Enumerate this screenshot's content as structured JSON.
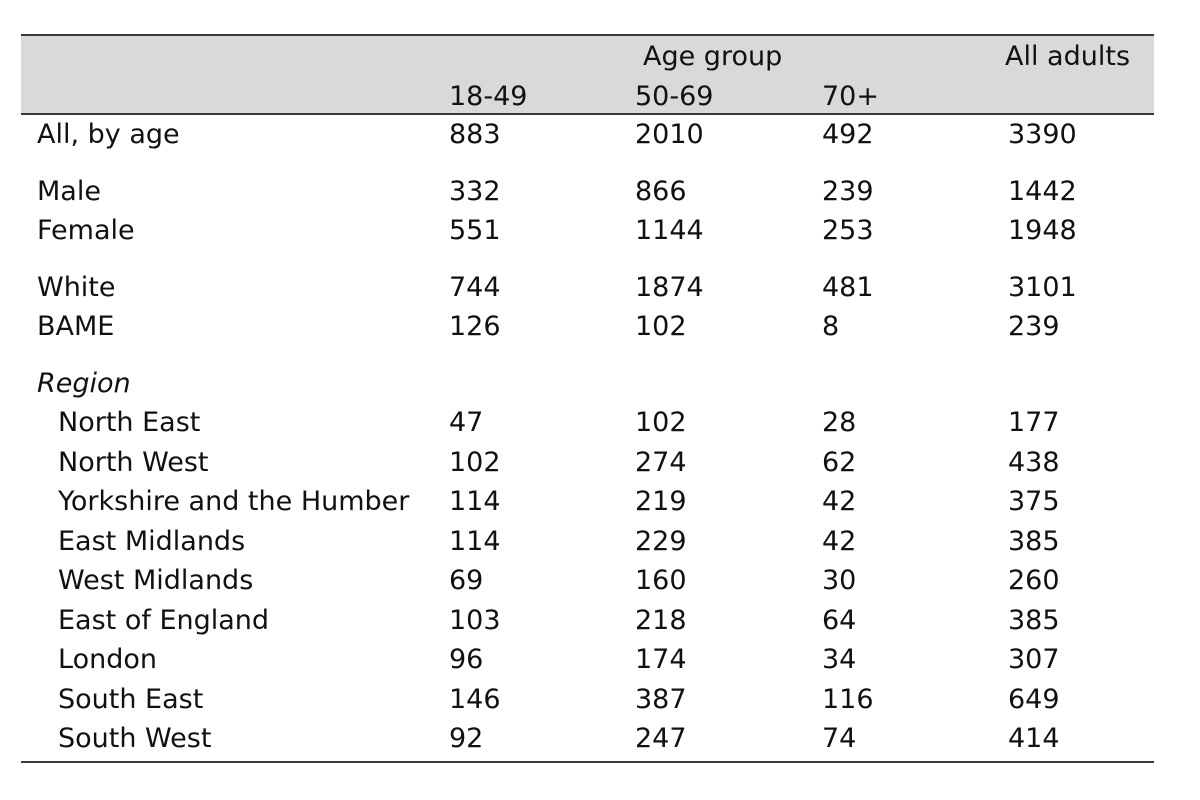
{
  "header": {
    "group_label": "Age group",
    "all_label": "All adults",
    "columns": [
      "18-49",
      "50-69",
      "70+"
    ]
  },
  "rows": [
    {
      "label": "All, by age",
      "values": [
        "883",
        "2010",
        "492",
        "3390"
      ]
    },
    {
      "label": "Male",
      "values": [
        "332",
        "866",
        "239",
        "1442"
      ]
    },
    {
      "label": "Female",
      "values": [
        "551",
        "1144",
        "253",
        "1948"
      ]
    },
    {
      "label": "White",
      "values": [
        "744",
        "1874",
        "481",
        "3101"
      ]
    },
    {
      "label": "BAME",
      "values": [
        "126",
        "102",
        "8",
        "239"
      ]
    },
    {
      "label": "Region",
      "values": [
        "",
        "",
        "",
        ""
      ]
    },
    {
      "label": "North East",
      "values": [
        "47",
        "102",
        "28",
        "177"
      ]
    },
    {
      "label": "North West",
      "values": [
        "102",
        "274",
        "62",
        "438"
      ]
    },
    {
      "label": "Yorkshire and the Humber",
      "values": [
        "114",
        "219",
        "42",
        "375"
      ]
    },
    {
      "label": "East Midlands",
      "values": [
        "114",
        "229",
        "42",
        "385"
      ]
    },
    {
      "label": "West Midlands",
      "values": [
        "69",
        "160",
        "30",
        "260"
      ]
    },
    {
      "label": "East of England",
      "values": [
        "103",
        "218",
        "64",
        "385"
      ]
    },
    {
      "label": "London",
      "values": [
        "96",
        "174",
        "34",
        "307"
      ]
    },
    {
      "label": "South East",
      "values": [
        "146",
        "387",
        "116",
        "649"
      ]
    },
    {
      "label": "South West",
      "values": [
        "92",
        "247",
        "74",
        "414"
      ]
    }
  ]
}
